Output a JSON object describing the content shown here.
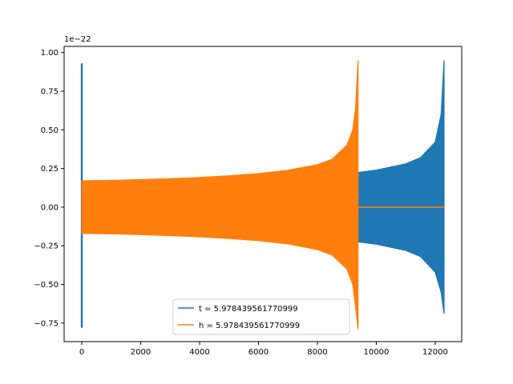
{
  "chart_data": {
    "type": "line",
    "title": "",
    "xlabel": "",
    "ylabel": "",
    "y_offset_label": "1e−22",
    "xlim": [
      -600,
      12900
    ],
    "ylim": [
      -0.87,
      1.04
    ],
    "x_ticks": [
      0,
      2000,
      4000,
      6000,
      8000,
      10000,
      12000
    ],
    "x_tick_labels": [
      "0",
      "2000",
      "4000",
      "6000",
      "8000",
      "10000",
      "12000"
    ],
    "y_ticks": [
      -0.75,
      -0.5,
      -0.25,
      0.0,
      0.25,
      0.5,
      0.75,
      1.0
    ],
    "y_tick_labels": [
      "−0.75",
      "−0.50",
      "−0.25",
      "0.00",
      "0.25",
      "0.50",
      "0.75",
      "1.00"
    ],
    "grid": false,
    "legend_position": "lower-center",
    "series": [
      {
        "name": "t = 5.978439561770999",
        "color": "#1f77b4",
        "segments": [
          {
            "kind": "spike",
            "x": 0,
            "y_max": 0.93,
            "y_min": -0.78
          },
          {
            "kind": "envelope",
            "x": [
              0,
              1000,
              2000,
              3000,
              4000,
              5000,
              6000,
              7000,
              8000,
              9000,
              9400,
              10000,
              11000,
              11500,
              12000,
              12200,
              12300
            ],
            "upper": [
              0.17,
              0.172,
              0.175,
              0.18,
              0.186,
              0.193,
              0.203,
              0.215,
              0.232,
              0.225,
              0.225,
              0.24,
              0.28,
              0.32,
              0.42,
              0.6,
              0.95
            ],
            "lower": [
              -0.17,
              -0.172,
              -0.175,
              -0.18,
              -0.186,
              -0.193,
              -0.203,
              -0.215,
              -0.232,
              -0.225,
              -0.225,
              -0.24,
              -0.28,
              -0.32,
              -0.42,
              -0.55,
              -0.69
            ]
          }
        ]
      },
      {
        "name": "h = 5.978439561770999",
        "color": "#ff7f0e",
        "segments": [
          {
            "kind": "envelope",
            "x": [
              0,
              1000,
              2000,
              3000,
              4000,
              5000,
              6000,
              7000,
              8000,
              8500,
              9000,
              9200,
              9300,
              9380
            ],
            "upper": [
              0.17,
              0.173,
              0.178,
              0.184,
              0.192,
              0.203,
              0.217,
              0.238,
              0.275,
              0.31,
              0.4,
              0.5,
              0.65,
              0.95
            ],
            "lower": [
              -0.17,
              -0.173,
              -0.178,
              -0.184,
              -0.192,
              -0.203,
              -0.217,
              -0.238,
              -0.275,
              -0.31,
              -0.4,
              -0.5,
              -0.65,
              -0.79
            ]
          },
          {
            "kind": "line",
            "x": [
              9380,
              12300
            ],
            "y": [
              0.0,
              0.0
            ]
          }
        ]
      }
    ]
  }
}
